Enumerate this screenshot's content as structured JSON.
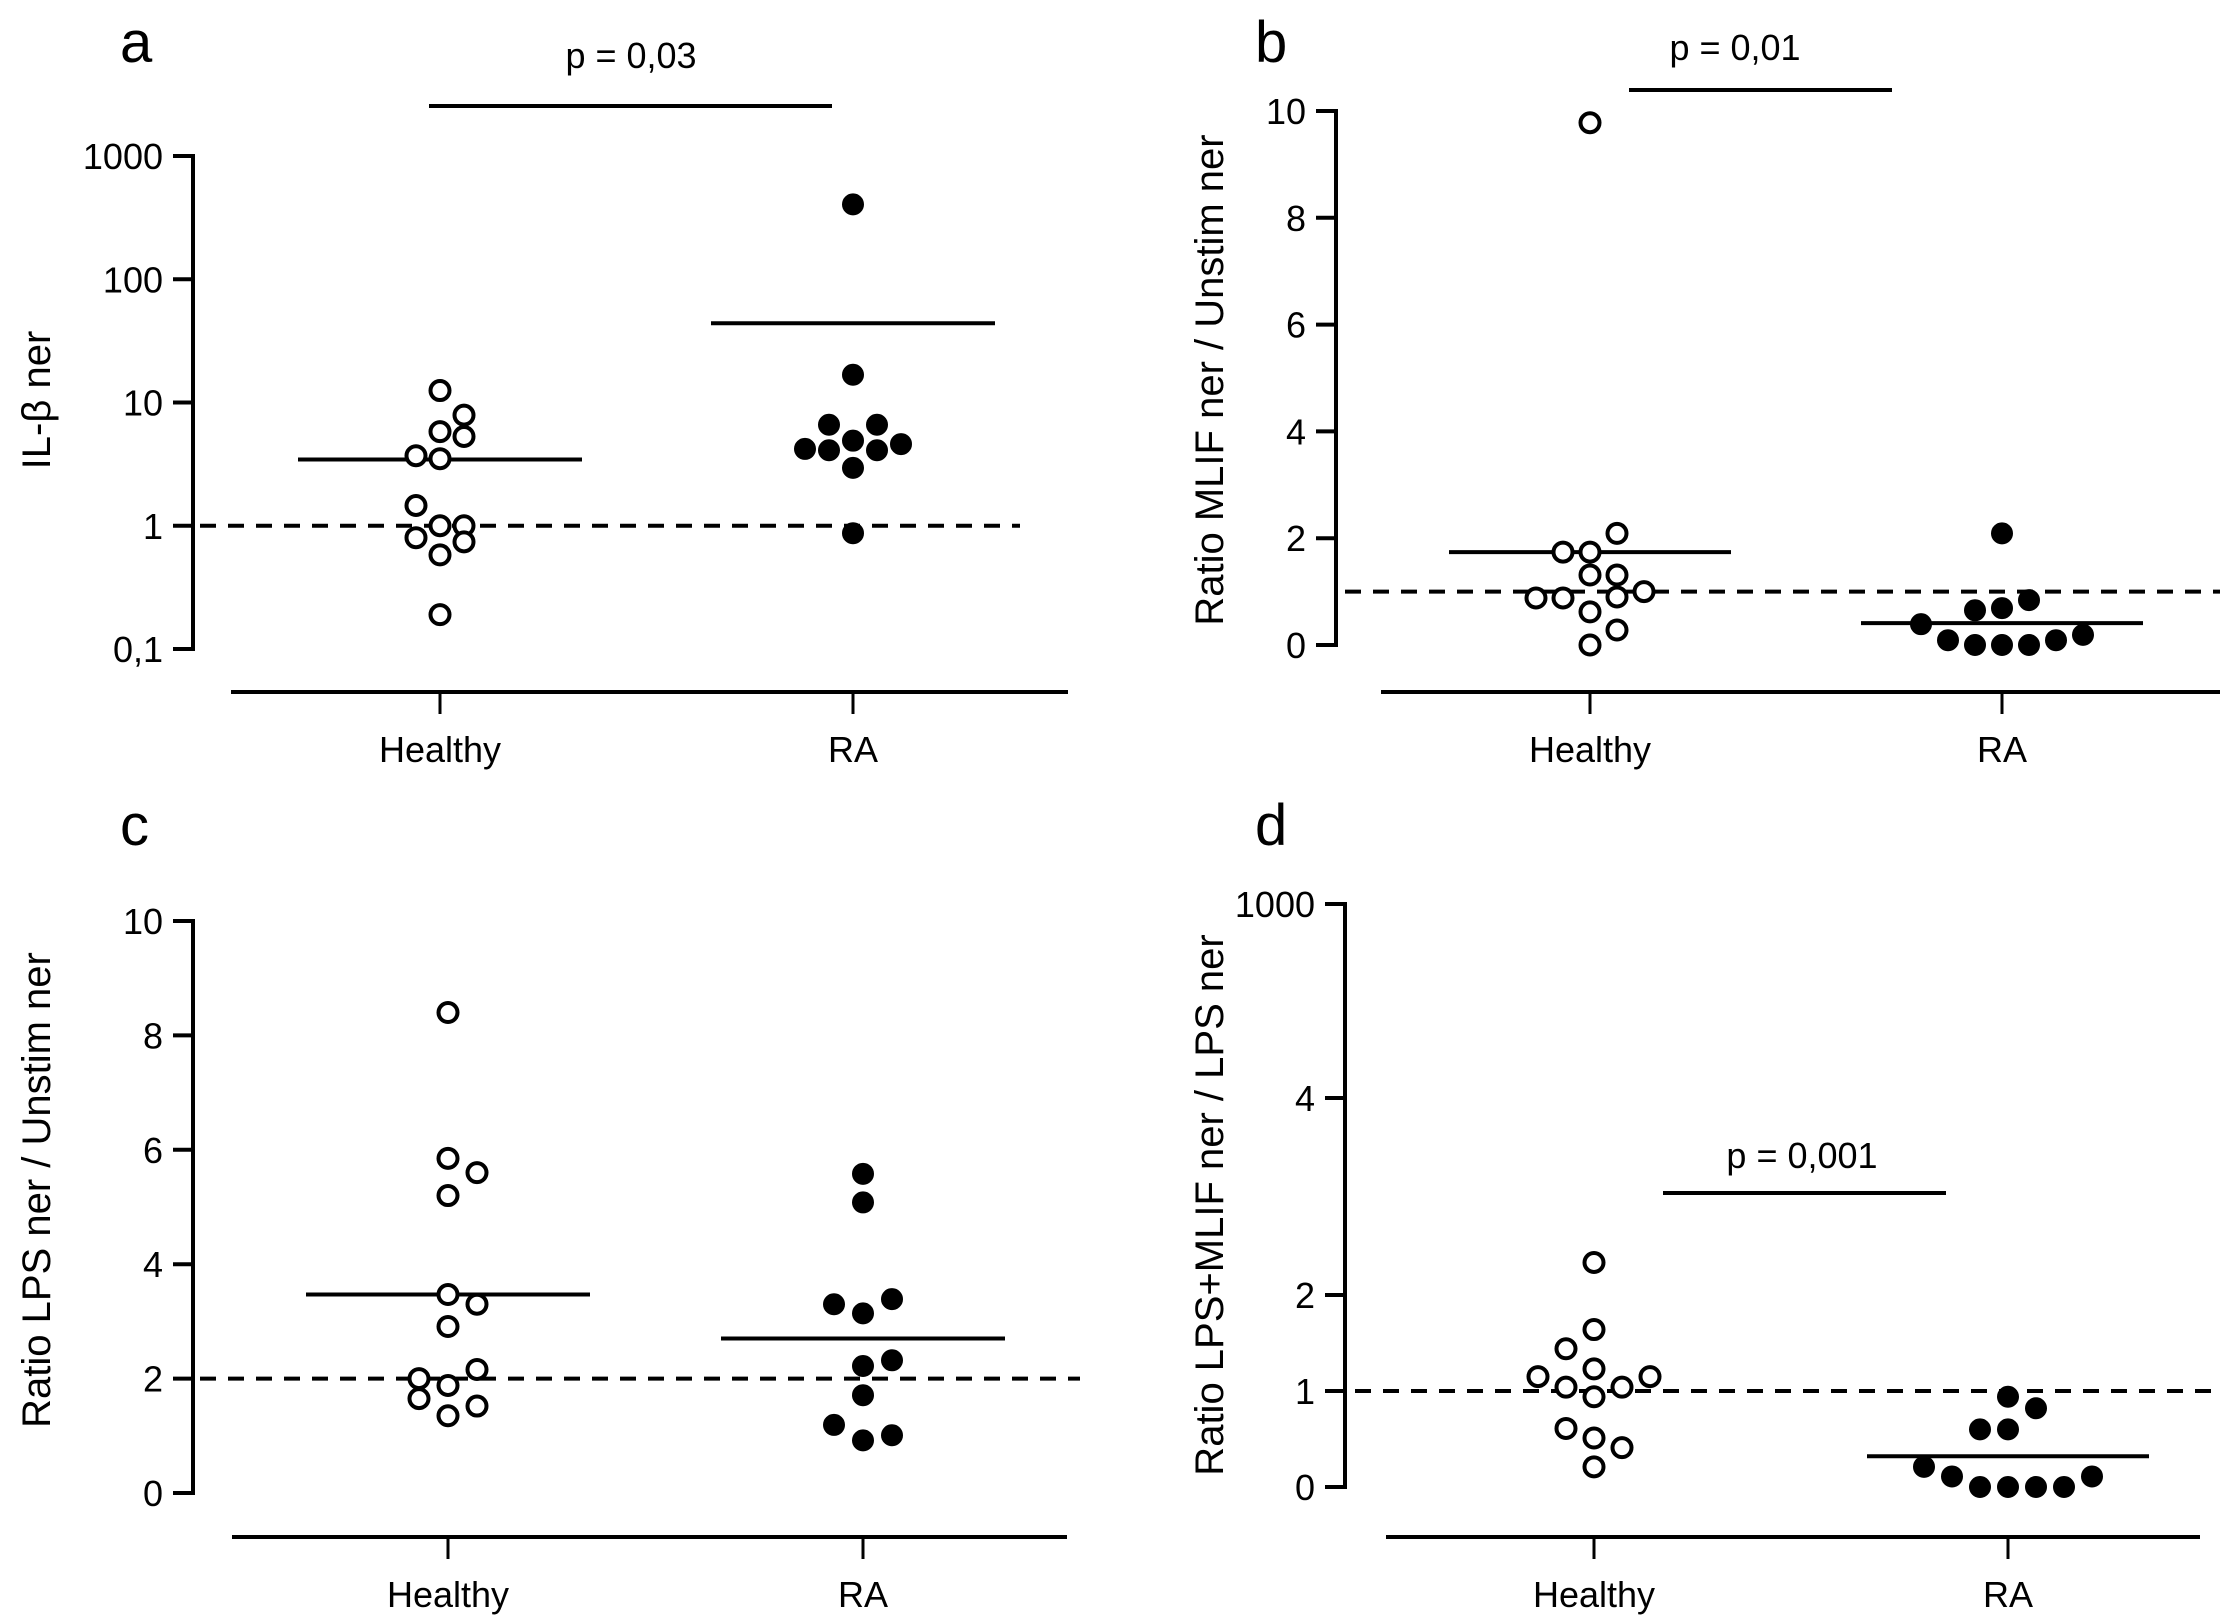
{
  "figure": {
    "panel_count": 4
  },
  "chart_data": [
    {
      "panel": "a",
      "type": "scatter",
      "title": "",
      "xlabel": "",
      "ylabel": "IL-β ner",
      "yscale": "log",
      "ylim": [
        0.1,
        1000
      ],
      "yticks": [
        0.1,
        1,
        10,
        100,
        1000
      ],
      "ytick_labels": [
        "0,1",
        "1",
        "10",
        "100",
        "1000"
      ],
      "categories": [
        "Healthy",
        "RA"
      ],
      "reference_line": 1,
      "grid": false,
      "legend": "none",
      "series": [
        {
          "name": "Healthy",
          "marker": "open-circle",
          "values": [
            12.5,
            7.9,
            5.8,
            5.3,
            3.7,
            3.5,
            1.46,
            1.0,
            1.0,
            0.8,
            0.74,
            0.58,
            0.19
          ],
          "offsets": [
            0,
            1,
            0,
            1,
            -1,
            0,
            -1,
            0,
            1,
            -1,
            1,
            0,
            0
          ],
          "mean": 3.45
        },
        {
          "name": "RA",
          "marker": "filled-circle",
          "values": [
            405,
            16.8,
            6.6,
            6.6,
            4.2,
            4.1,
            4.9,
            4.1,
            4.6,
            2.95,
            0.87
          ],
          "offsets": [
            0,
            0,
            -1,
            1,
            -2,
            -1,
            0,
            1,
            2,
            0,
            0
          ],
          "mean": 44
        }
      ],
      "annotation": {
        "text": "p = 0,03",
        "from": "Healthy",
        "to": "RA"
      }
    },
    {
      "panel": "b",
      "type": "scatter",
      "title": "",
      "xlabel": "",
      "ylabel": "Ratio MLIF ner / Unstim ner",
      "yscale": "linear",
      "ylim": [
        0,
        10
      ],
      "yticks": [
        0,
        2,
        4,
        6,
        8,
        10
      ],
      "ytick_labels": [
        "0",
        "2",
        "4",
        "6",
        "8",
        "10"
      ],
      "categories": [
        "Healthy",
        "RA"
      ],
      "reference_line": 1,
      "grid": false,
      "legend": "none",
      "series": [
        {
          "name": "Healthy",
          "marker": "open-circle",
          "values": [
            9.78,
            2.09,
            1.74,
            1.74,
            1.31,
            1.31,
            1.0,
            0.9,
            0.88,
            0.88,
            0.62,
            0.28,
            0.0
          ],
          "offsets": [
            0,
            1,
            -1,
            0,
            0,
            1,
            2,
            1,
            -2,
            -1,
            0,
            1,
            0
          ],
          "mean": 1.74
        },
        {
          "name": "RA",
          "marker": "filled-circle",
          "values": [
            2.09,
            0.84,
            0.69,
            0.65,
            0.39,
            0.19,
            0.09,
            0.09,
            0.0,
            0.0,
            0.0
          ],
          "offsets": [
            0,
            1,
            0,
            -1,
            -3,
            3,
            -2,
            2,
            -1,
            0,
            1
          ],
          "mean": 0.41
        }
      ],
      "annotation": {
        "text": "p = 0,01",
        "from": "Healthy",
        "to": "RA"
      }
    },
    {
      "panel": "c",
      "type": "scatter",
      "title": "",
      "xlabel": "",
      "ylabel": "Ratio LPS ner / Unstim ner",
      "yscale": "linear",
      "ylim": [
        0,
        10
      ],
      "yticks": [
        0,
        2,
        4,
        6,
        8,
        10
      ],
      "ytick_labels": [
        "0",
        "2",
        "4",
        "6",
        "8",
        "10"
      ],
      "categories": [
        "Healthy",
        "RA"
      ],
      "reference_line": 2,
      "grid": false,
      "legend": "none",
      "series": [
        {
          "name": "Healthy",
          "marker": "open-circle",
          "values": [
            8.4,
            5.85,
            5.6,
            5.2,
            3.47,
            3.3,
            2.91,
            2.16,
            2.0,
            1.88,
            1.65,
            1.52,
            1.35
          ],
          "offsets": [
            0,
            0,
            1,
            0,
            0,
            1,
            0,
            1,
            -1,
            0,
            -1,
            1,
            0
          ],
          "mean": 3.47
        },
        {
          "name": "RA",
          "marker": "filled-circle",
          "values": [
            5.58,
            5.08,
            3.39,
            3.3,
            3.14,
            2.32,
            2.22,
            1.71,
            1.19,
            1.01,
            0.92
          ],
          "offsets": [
            0,
            0,
            1,
            -1,
            0,
            1,
            0,
            0,
            -1,
            1,
            0
          ],
          "mean": 2.7
        }
      ]
    },
    {
      "panel": "d",
      "type": "scatter",
      "title": "",
      "xlabel": "",
      "ylabel": "Ratio LPS+MLIF ner / LPS ner",
      "yscale": "piecewise",
      "ylim": [
        0,
        1000
      ],
      "yticks": [
        0,
        1,
        2,
        4,
        1000
      ],
      "ytick_labels": [
        "0",
        "1",
        "2",
        "4",
        "1000"
      ],
      "categories": [
        "Healthy",
        "RA"
      ],
      "reference_line": 1,
      "grid": false,
      "legend": "none",
      "series": [
        {
          "name": "Healthy",
          "marker": "open-circle",
          "values": [
            2.33,
            1.64,
            1.44,
            1.23,
            1.15,
            1.15,
            1.04,
            1.04,
            0.94,
            0.61,
            0.51,
            0.41,
            0.21
          ],
          "offsets": [
            0,
            0,
            -1,
            0,
            -2,
            2,
            -1,
            1,
            0,
            -1,
            0,
            1,
            0
          ]
        },
        {
          "name": "RA",
          "marker": "filled-circle",
          "values": [
            0.94,
            0.82,
            0.6,
            0.6,
            0.21,
            0.11,
            0.11,
            0.0,
            0.0,
            0.0,
            0.0
          ],
          "offsets": [
            0,
            1,
            -1,
            0,
            -3,
            -2,
            3,
            -1,
            0,
            1,
            2
          ],
          "mean": 0.32
        }
      ],
      "annotation": {
        "text": "p = 0,001",
        "from": "Healthy",
        "to": "RA"
      }
    }
  ]
}
